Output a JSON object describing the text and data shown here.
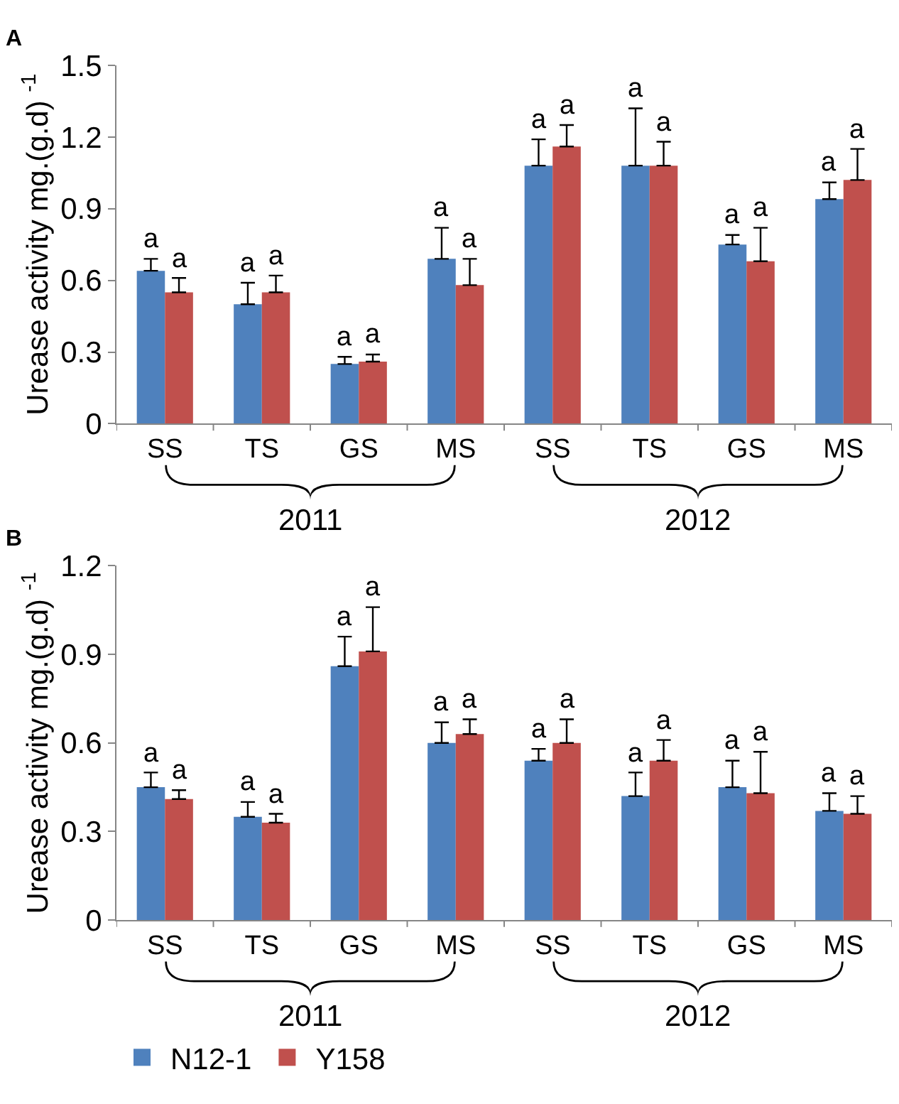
{
  "chart_data": [
    {
      "type": "bar",
      "annotations": [
        "A",
        "2011",
        "2012"
      ],
      "ylabel": "Urease activity mg.(g.d) $^{-1}$",
      "categories": [
        "SS",
        "TS",
        "GS",
        "MS",
        "SS",
        "TS",
        "GS",
        "MS"
      ],
      "ylim": [
        0,
        1.5
      ],
      "yticks": [
        0,
        0.3,
        0.6,
        0.9,
        1.2,
        1.5
      ],
      "series": [
        {
          "color": "#4f81bd",
          "values": [
            0.64,
            0.5,
            0.25,
            0.69,
            1.08,
            1.08,
            0.75,
            0.94
          ],
          "errors": [
            [
              0.64,
              0.69
            ],
            [
              0.5,
              0.59
            ],
            [
              0.25,
              0.28
            ],
            [
              0.69,
              0.82
            ],
            [
              1.08,
              1.19
            ],
            [
              1.08,
              1.32
            ],
            [
              0.75,
              0.79
            ],
            [
              0.94,
              1.01
            ]
          ],
          "value_labels": [
            "a",
            "a",
            "a",
            "a",
            "a",
            "a",
            "a",
            "a"
          ]
        },
        {
          "color": "#c0504d",
          "values": [
            0.55,
            0.55,
            0.26,
            0.58,
            1.16,
            1.08,
            0.68,
            1.02
          ],
          "errors": [
            [
              0.55,
              0.61
            ],
            [
              0.55,
              0.62
            ],
            [
              0.26,
              0.29
            ],
            [
              0.58,
              0.69
            ],
            [
              1.16,
              1.25
            ],
            [
              1.08,
              1.18
            ],
            [
              0.68,
              0.82
            ],
            [
              1.02,
              1.15
            ]
          ],
          "value_labels": [
            "a",
            "a",
            "a",
            "a",
            "a",
            "a",
            "a",
            "a"
          ]
        }
      ]
    },
    {
      "type": "bar",
      "annotations": [
        "B",
        "2011",
        "2012"
      ],
      "ylabel": "Urease activity mg.(g.d) $^{-1}$",
      "categories": [
        "SS",
        "TS",
        "GS",
        "MS",
        "SS",
        "TS",
        "GS",
        "MS"
      ],
      "ylim": [
        0,
        1.2
      ],
      "yticks": [
        0,
        0.3,
        0.6,
        0.9,
        1.2
      ],
      "legend": "bottom left",
      "series": [
        {
          "name": "N12-1",
          "color": "#4f81bd",
          "values": [
            0.45,
            0.35,
            0.86,
            0.6,
            0.54,
            0.42,
            0.45,
            0.37
          ],
          "errors": [
            [
              0.45,
              0.5
            ],
            [
              0.35,
              0.4
            ],
            [
              0.86,
              0.96
            ],
            [
              0.6,
              0.67
            ],
            [
              0.54,
              0.58
            ],
            [
              0.42,
              0.5
            ],
            [
              0.45,
              0.54
            ],
            [
              0.37,
              0.43
            ]
          ],
          "value_labels": [
            "a",
            "a",
            "a",
            "a",
            "a",
            "a",
            "a",
            "a"
          ]
        },
        {
          "name": "Y158",
          "color": "#c0504d",
          "values": [
            0.41,
            0.33,
            0.91,
            0.63,
            0.6,
            0.54,
            0.43,
            0.36
          ],
          "errors": [
            [
              0.41,
              0.44
            ],
            [
              0.33,
              0.36
            ],
            [
              0.91,
              1.06
            ],
            [
              0.63,
              0.68
            ],
            [
              0.6,
              0.68
            ],
            [
              0.54,
              0.61
            ],
            [
              0.43,
              0.57
            ],
            [
              0.36,
              0.42
            ]
          ],
          "value_labels": [
            "a",
            "a",
            "a",
            "a",
            "a",
            "a",
            "a",
            "a"
          ]
        }
      ]
    }
  ]
}
